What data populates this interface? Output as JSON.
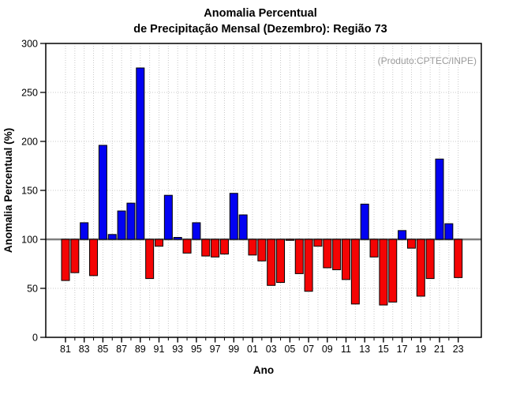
{
  "title": {
    "line1": "Anomalia Percentual",
    "line2": "de Precipitação Mensal (Dezembro): Região 73"
  },
  "annotation": "(Produto:CPTEC/INPE)",
  "chart_data": {
    "type": "bar",
    "title": "Anomalia Percentual de Precipitação Mensal (Dezembro): Região 73",
    "xlabel": "Ano",
    "ylabel": "Anomalia Percentual (%)",
    "ylim": [
      0,
      300
    ],
    "yticks": [
      0,
      50,
      100,
      150,
      200,
      250,
      300
    ],
    "baseline": 100,
    "grid": "dotted",
    "legend_position": "none",
    "colors": {
      "above_baseline": "#0202f2",
      "below_baseline": "#f40404",
      "baseline_line": "#7e7e7e",
      "gridline": "#c8c8c8",
      "annotation_text": "#9b9b9b"
    },
    "categories": [
      "1981",
      "1982",
      "1983",
      "1984",
      "1985",
      "1986",
      "1987",
      "1988",
      "1989",
      "1990",
      "1991",
      "1992",
      "1993",
      "1994",
      "1995",
      "1996",
      "1997",
      "1998",
      "1999",
      "2000",
      "2001",
      "2002",
      "2003",
      "2004",
      "2005",
      "2006",
      "2007",
      "2008",
      "2009",
      "2010",
      "2011",
      "2012",
      "2013",
      "2014",
      "2015",
      "2016",
      "2017",
      "2018",
      "2019",
      "2020",
      "2021",
      "2022",
      "2023"
    ],
    "xtick_labels": [
      "81",
      "83",
      "85",
      "87",
      "89",
      "91",
      "93",
      "95",
      "97",
      "99",
      "01",
      "03",
      "05",
      "07",
      "09",
      "11",
      "13",
      "15",
      "17",
      "19",
      "21",
      "23"
    ],
    "values": [
      58,
      66,
      117,
      63,
      196,
      105,
      129,
      137,
      275,
      60,
      93,
      145,
      102,
      86,
      117,
      83,
      82,
      85,
      147,
      125,
      84,
      78,
      53,
      56,
      99,
      65,
      47,
      93,
      71,
      69,
      59,
      34,
      136,
      82,
      33,
      36,
      109,
      91,
      42,
      60,
      182,
      116,
      61
    ]
  }
}
